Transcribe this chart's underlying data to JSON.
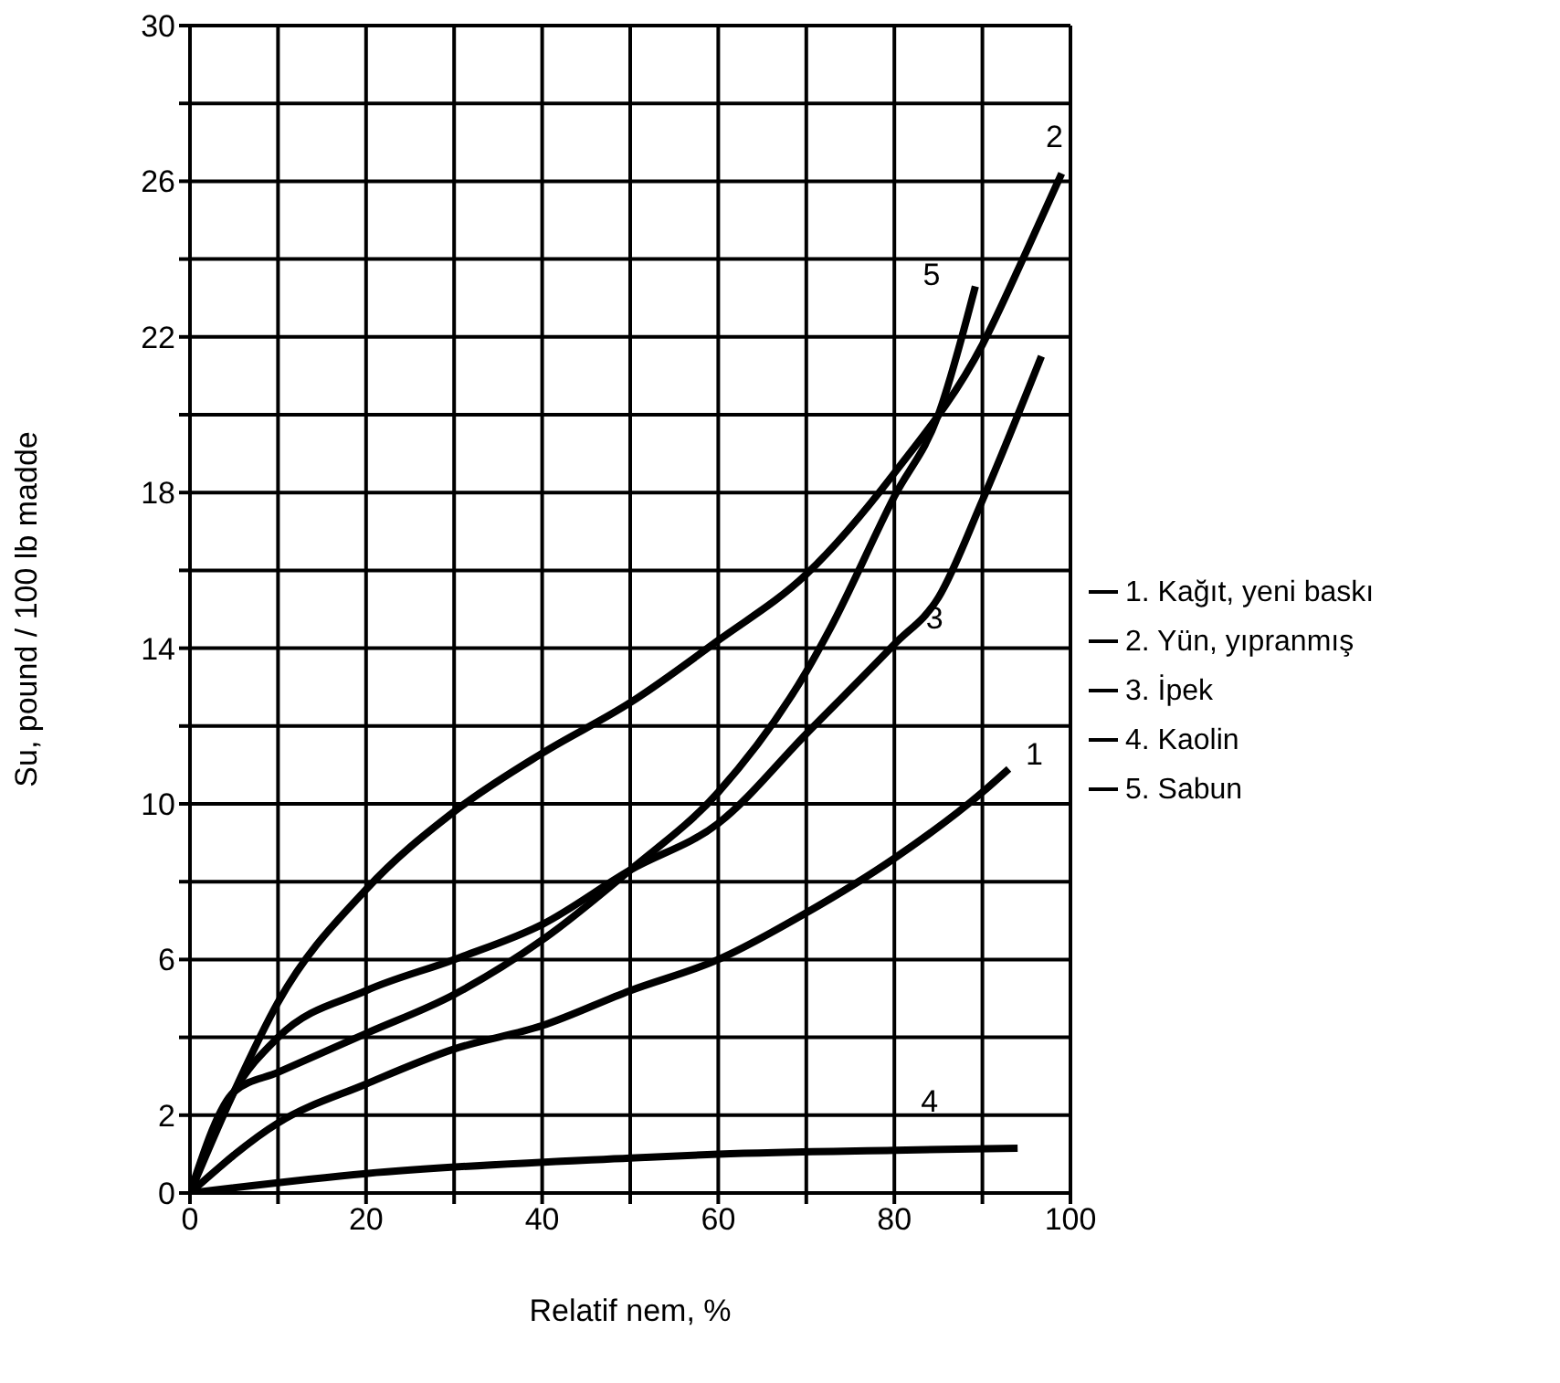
{
  "chart_data": {
    "type": "line",
    "xlabel": "Relatif nem, %",
    "ylabel": "Su, pound / 100 lb madde",
    "xlim": [
      0,
      100
    ],
    "xticks": [
      0,
      {
        "value": 10,
        "label": null
      },
      20,
      {
        "value": 30,
        "label": null
      },
      40,
      {
        "value": 50,
        "label": null
      },
      60,
      {
        "value": 70,
        "label": null
      },
      80,
      {
        "value": 90,
        "label": null
      },
      100
    ],
    "ylim": [
      0,
      30
    ],
    "yticks": [
      0,
      2,
      {
        "value": 4,
        "label": null
      },
      6,
      {
        "value": 8,
        "label": null
      },
      10,
      {
        "value": 12,
        "label": null
      },
      14,
      {
        "value": 16,
        "label": null
      },
      18,
      {
        "value": 20,
        "label": null
      },
      22,
      {
        "value": 24,
        "label": null
      },
      26,
      {
        "value": 28,
        "label": null
      },
      30
    ],
    "grid": true,
    "legend": "right",
    "marker": "none",
    "line_style": "solid",
    "series": [
      {
        "name": "1. Kağıt, yeni baskı",
        "color": "#000000",
        "x": [
          0,
          10,
          20,
          30,
          40,
          50,
          60,
          70,
          80,
          90,
          93
        ],
        "values": [
          0,
          1.8,
          2.8,
          3.7,
          4.3,
          5.2,
          6.0,
          7.2,
          8.6,
          10.3,
          10.9
        ]
      },
      {
        "name": "2. Yün, yıpranmış",
        "color": "#000000",
        "x": [
          0,
          5,
          10,
          20,
          30,
          40,
          50,
          60,
          70,
          80,
          90,
          95,
          99
        ],
        "values": [
          0,
          2.6,
          4.9,
          7.8,
          9.8,
          11.3,
          12.6,
          14.2,
          15.9,
          18.5,
          21.8,
          24.2,
          26.2
        ]
      },
      {
        "name": "3. İpek",
        "color": "#000000",
        "x": [
          0,
          5,
          10,
          20,
          30,
          40,
          50,
          60,
          70,
          80,
          85,
          90,
          96.7
        ],
        "values": [
          0,
          2.6,
          4.0,
          5.2,
          6.0,
          6.9,
          8.3,
          9.5,
          11.8,
          14.1,
          15.3,
          17.8,
          21.5
        ]
      },
      {
        "name": "4. Kaolin",
        "color": "#000000",
        "x": [
          0,
          20,
          50,
          60,
          80,
          94
        ],
        "values": [
          0,
          0.5,
          0.9,
          1.0,
          1.1,
          1.15
        ]
      },
      {
        "name": "5. Sabun",
        "color": "#000000",
        "x": [
          0,
          5,
          10,
          20,
          30,
          40,
          50,
          60,
          70,
          72.7,
          80,
          85,
          89.2
        ],
        "values": [
          0,
          2.6,
          3.1,
          4.1,
          5.1,
          6.5,
          8.3,
          10.3,
          13.4,
          14.5,
          17.9,
          20.0,
          23.3
        ]
      }
    ],
    "annotations": [
      {
        "text": "1",
        "x": 93,
        "y": 10.9
      },
      {
        "text": "2",
        "x": 99,
        "y": 26.2
      },
      {
        "text": "3",
        "x": 80,
        "y": 14.1
      },
      {
        "text": "4",
        "x": 84,
        "y": 1.12
      },
      {
        "text": "5",
        "x": 89.2,
        "y": 23.3
      }
    ]
  }
}
